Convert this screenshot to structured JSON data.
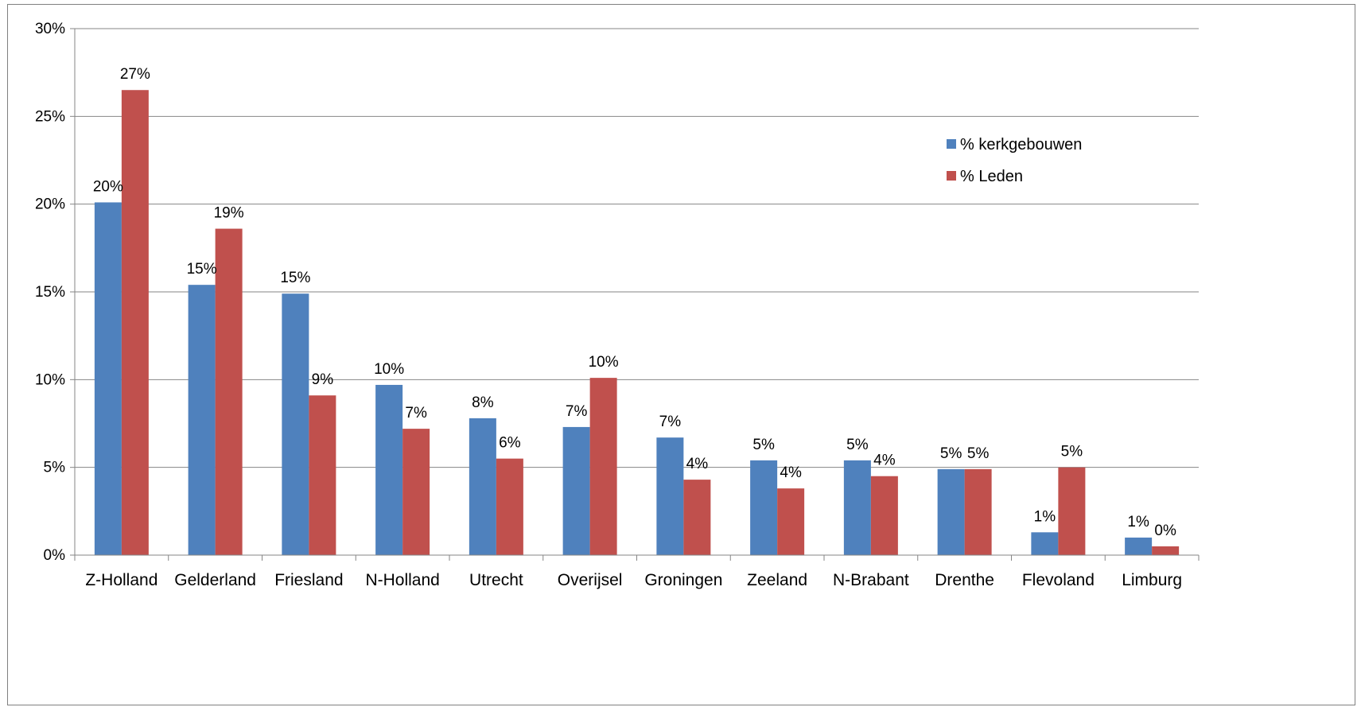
{
  "chart_data": {
    "type": "bar",
    "title": "",
    "xlabel": "",
    "ylabel": "",
    "ylim": [
      0,
      0.3
    ],
    "y_ticks": [
      0,
      0.05,
      0.1,
      0.15,
      0.2,
      0.25,
      0.3
    ],
    "y_tick_labels": [
      "0%",
      "5%",
      "10%",
      "15%",
      "20%",
      "25%",
      "30%"
    ],
    "grid": true,
    "legend_position": "right",
    "categories": [
      "Z-Holland",
      "Gelderland",
      "Friesland",
      "N-Holland",
      "Utrecht",
      "Overijsel",
      "Groningen",
      "Zeeland",
      "N-Brabant",
      "Drenthe",
      "Flevoland",
      "Limburg"
    ],
    "series": [
      {
        "name": "% kerkgebouwen",
        "color": "#4f81bd",
        "values": [
          0.201,
          0.154,
          0.149,
          0.097,
          0.078,
          0.073,
          0.067,
          0.054,
          0.054,
          0.049,
          0.013,
          0.01
        ],
        "labels": [
          "20%",
          "15%",
          "15%",
          "10%",
          "8%",
          "7%",
          "7%",
          "5%",
          "5%",
          "5%",
          "1%",
          "1%"
        ]
      },
      {
        "name": "% Leden",
        "color": "#c0504d",
        "values": [
          0.265,
          0.186,
          0.091,
          0.072,
          0.055,
          0.101,
          0.043,
          0.038,
          0.045,
          0.049,
          0.05,
          0.005
        ],
        "labels": [
          "27%",
          "19%",
          "9%",
          "7%",
          "6%",
          "10%",
          "4%",
          "4%",
          "4%",
          "5%",
          "5%",
          "0%"
        ]
      }
    ]
  }
}
